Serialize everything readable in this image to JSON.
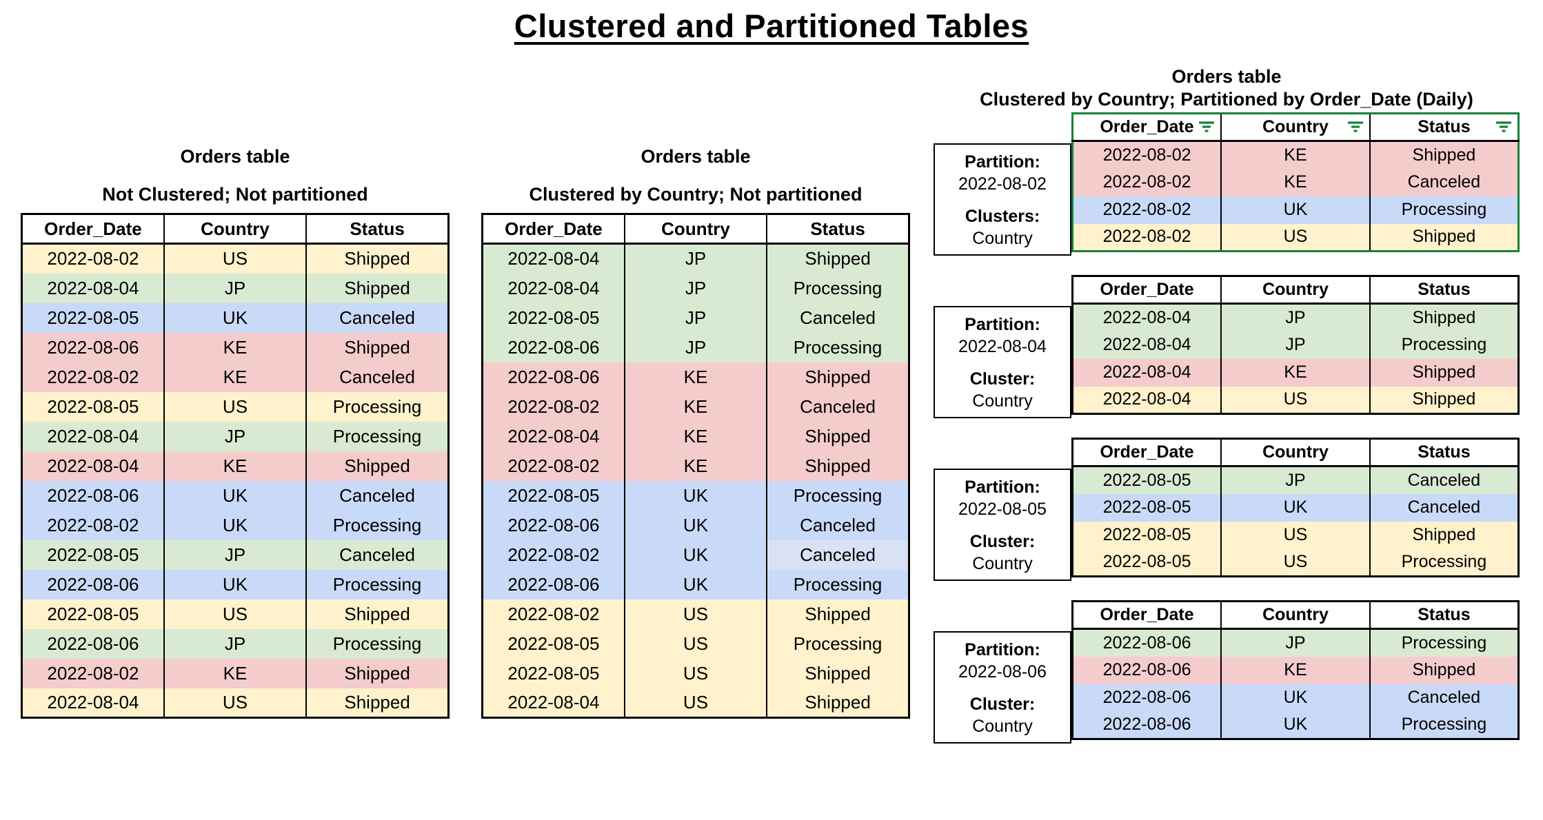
{
  "page_title": "Clustered and Partitioned Tables",
  "columns": [
    "Order_Date",
    "Country",
    "Status"
  ],
  "colors": {
    "US": "#fff2cc",
    "JP": "#d9ead3",
    "UK": "#c9daf8",
    "KE": "#f4cccc",
    "UK_LIGHT": "#d9e2f5",
    "filter_green": "#188038"
  },
  "left_table": {
    "title": "Orders table",
    "subtitle": "Not Clustered; Not partitioned",
    "rows": [
      [
        "2022-08-02",
        "US",
        "Shipped"
      ],
      [
        "2022-08-04",
        "JP",
        "Shipped"
      ],
      [
        "2022-08-05",
        "UK",
        "Canceled"
      ],
      [
        "2022-08-06",
        "KE",
        "Shipped"
      ],
      [
        "2022-08-02",
        "KE",
        "Canceled"
      ],
      [
        "2022-08-05",
        "US",
        "Processing"
      ],
      [
        "2022-08-04",
        "JP",
        "Processing"
      ],
      [
        "2022-08-04",
        "KE",
        "Shipped"
      ],
      [
        "2022-08-06",
        "UK",
        "Canceled"
      ],
      [
        "2022-08-02",
        "UK",
        "Processing"
      ],
      [
        "2022-08-05",
        "JP",
        "Canceled"
      ],
      [
        "2022-08-06",
        "UK",
        "Processing"
      ],
      [
        "2022-08-05",
        "US",
        "Shipped"
      ],
      [
        "2022-08-06",
        "JP",
        "Processing"
      ],
      [
        "2022-08-02",
        "KE",
        "Shipped"
      ],
      [
        "2022-08-04",
        "US",
        "Shipped"
      ]
    ]
  },
  "middle_table": {
    "title": "Orders table",
    "subtitle": "Clustered by Country; Not partitioned",
    "status_cell_color_overrides": {
      "10": "UK_LIGHT"
    },
    "rows": [
      [
        "2022-08-04",
        "JP",
        "Shipped"
      ],
      [
        "2022-08-04",
        "JP",
        "Processing"
      ],
      [
        "2022-08-05",
        "JP",
        "Canceled"
      ],
      [
        "2022-08-06",
        "JP",
        "Processing"
      ],
      [
        "2022-08-06",
        "KE",
        "Shipped"
      ],
      [
        "2022-08-02",
        "KE",
        "Canceled"
      ],
      [
        "2022-08-04",
        "KE",
        "Shipped"
      ],
      [
        "2022-08-02",
        "KE",
        "Shipped"
      ],
      [
        "2022-08-05",
        "UK",
        "Processing"
      ],
      [
        "2022-08-06",
        "UK",
        "Canceled"
      ],
      [
        "2022-08-02",
        "UK",
        "Canceled"
      ],
      [
        "2022-08-06",
        "UK",
        "Processing"
      ],
      [
        "2022-08-02",
        "US",
        "Shipped"
      ],
      [
        "2022-08-05",
        "US",
        "Processing"
      ],
      [
        "2022-08-05",
        "US",
        "Shipped"
      ],
      [
        "2022-08-04",
        "US",
        "Shipped"
      ]
    ]
  },
  "right_group": {
    "title": "Orders table",
    "subtitle": "Clustered by Country; Partitioned by Order_Date (Daily)",
    "partitions": [
      {
        "partition_label": "Partition:",
        "partition_date": "2022-08-02",
        "cluster_label": "Clusters:",
        "cluster_value": "Country",
        "has_filter_icons": true,
        "rows": [
          [
            "2022-08-02",
            "KE",
            "Shipped"
          ],
          [
            "2022-08-02",
            "KE",
            "Canceled"
          ],
          [
            "2022-08-02",
            "UK",
            "Processing"
          ],
          [
            "2022-08-02",
            "US",
            "Shipped"
          ]
        ]
      },
      {
        "partition_label": "Partition:",
        "partition_date": "2022-08-04",
        "cluster_label": "Cluster:",
        "cluster_value": "Country",
        "has_filter_icons": false,
        "rows": [
          [
            "2022-08-04",
            "JP",
            "Shipped"
          ],
          [
            "2022-08-04",
            "JP",
            "Processing"
          ],
          [
            "2022-08-04",
            "KE",
            "Shipped"
          ],
          [
            "2022-08-04",
            "US",
            "Shipped"
          ]
        ]
      },
      {
        "partition_label": "Partition:",
        "partition_date": "2022-08-05",
        "cluster_label": "Cluster:",
        "cluster_value": "Country",
        "has_filter_icons": false,
        "rows": [
          [
            "2022-08-05",
            "JP",
            "Canceled"
          ],
          [
            "2022-08-05",
            "UK",
            "Canceled"
          ],
          [
            "2022-08-05",
            "US",
            "Shipped"
          ],
          [
            "2022-08-05",
            "US",
            "Processing"
          ]
        ]
      },
      {
        "partition_label": "Partition:",
        "partition_date": "2022-08-06",
        "cluster_label": "Cluster:",
        "cluster_value": "Country",
        "has_filter_icons": false,
        "rows": [
          [
            "2022-08-06",
            "JP",
            "Processing"
          ],
          [
            "2022-08-06",
            "KE",
            "Shipped"
          ],
          [
            "2022-08-06",
            "UK",
            "Canceled"
          ],
          [
            "2022-08-06",
            "UK",
            "Processing"
          ]
        ]
      }
    ]
  }
}
